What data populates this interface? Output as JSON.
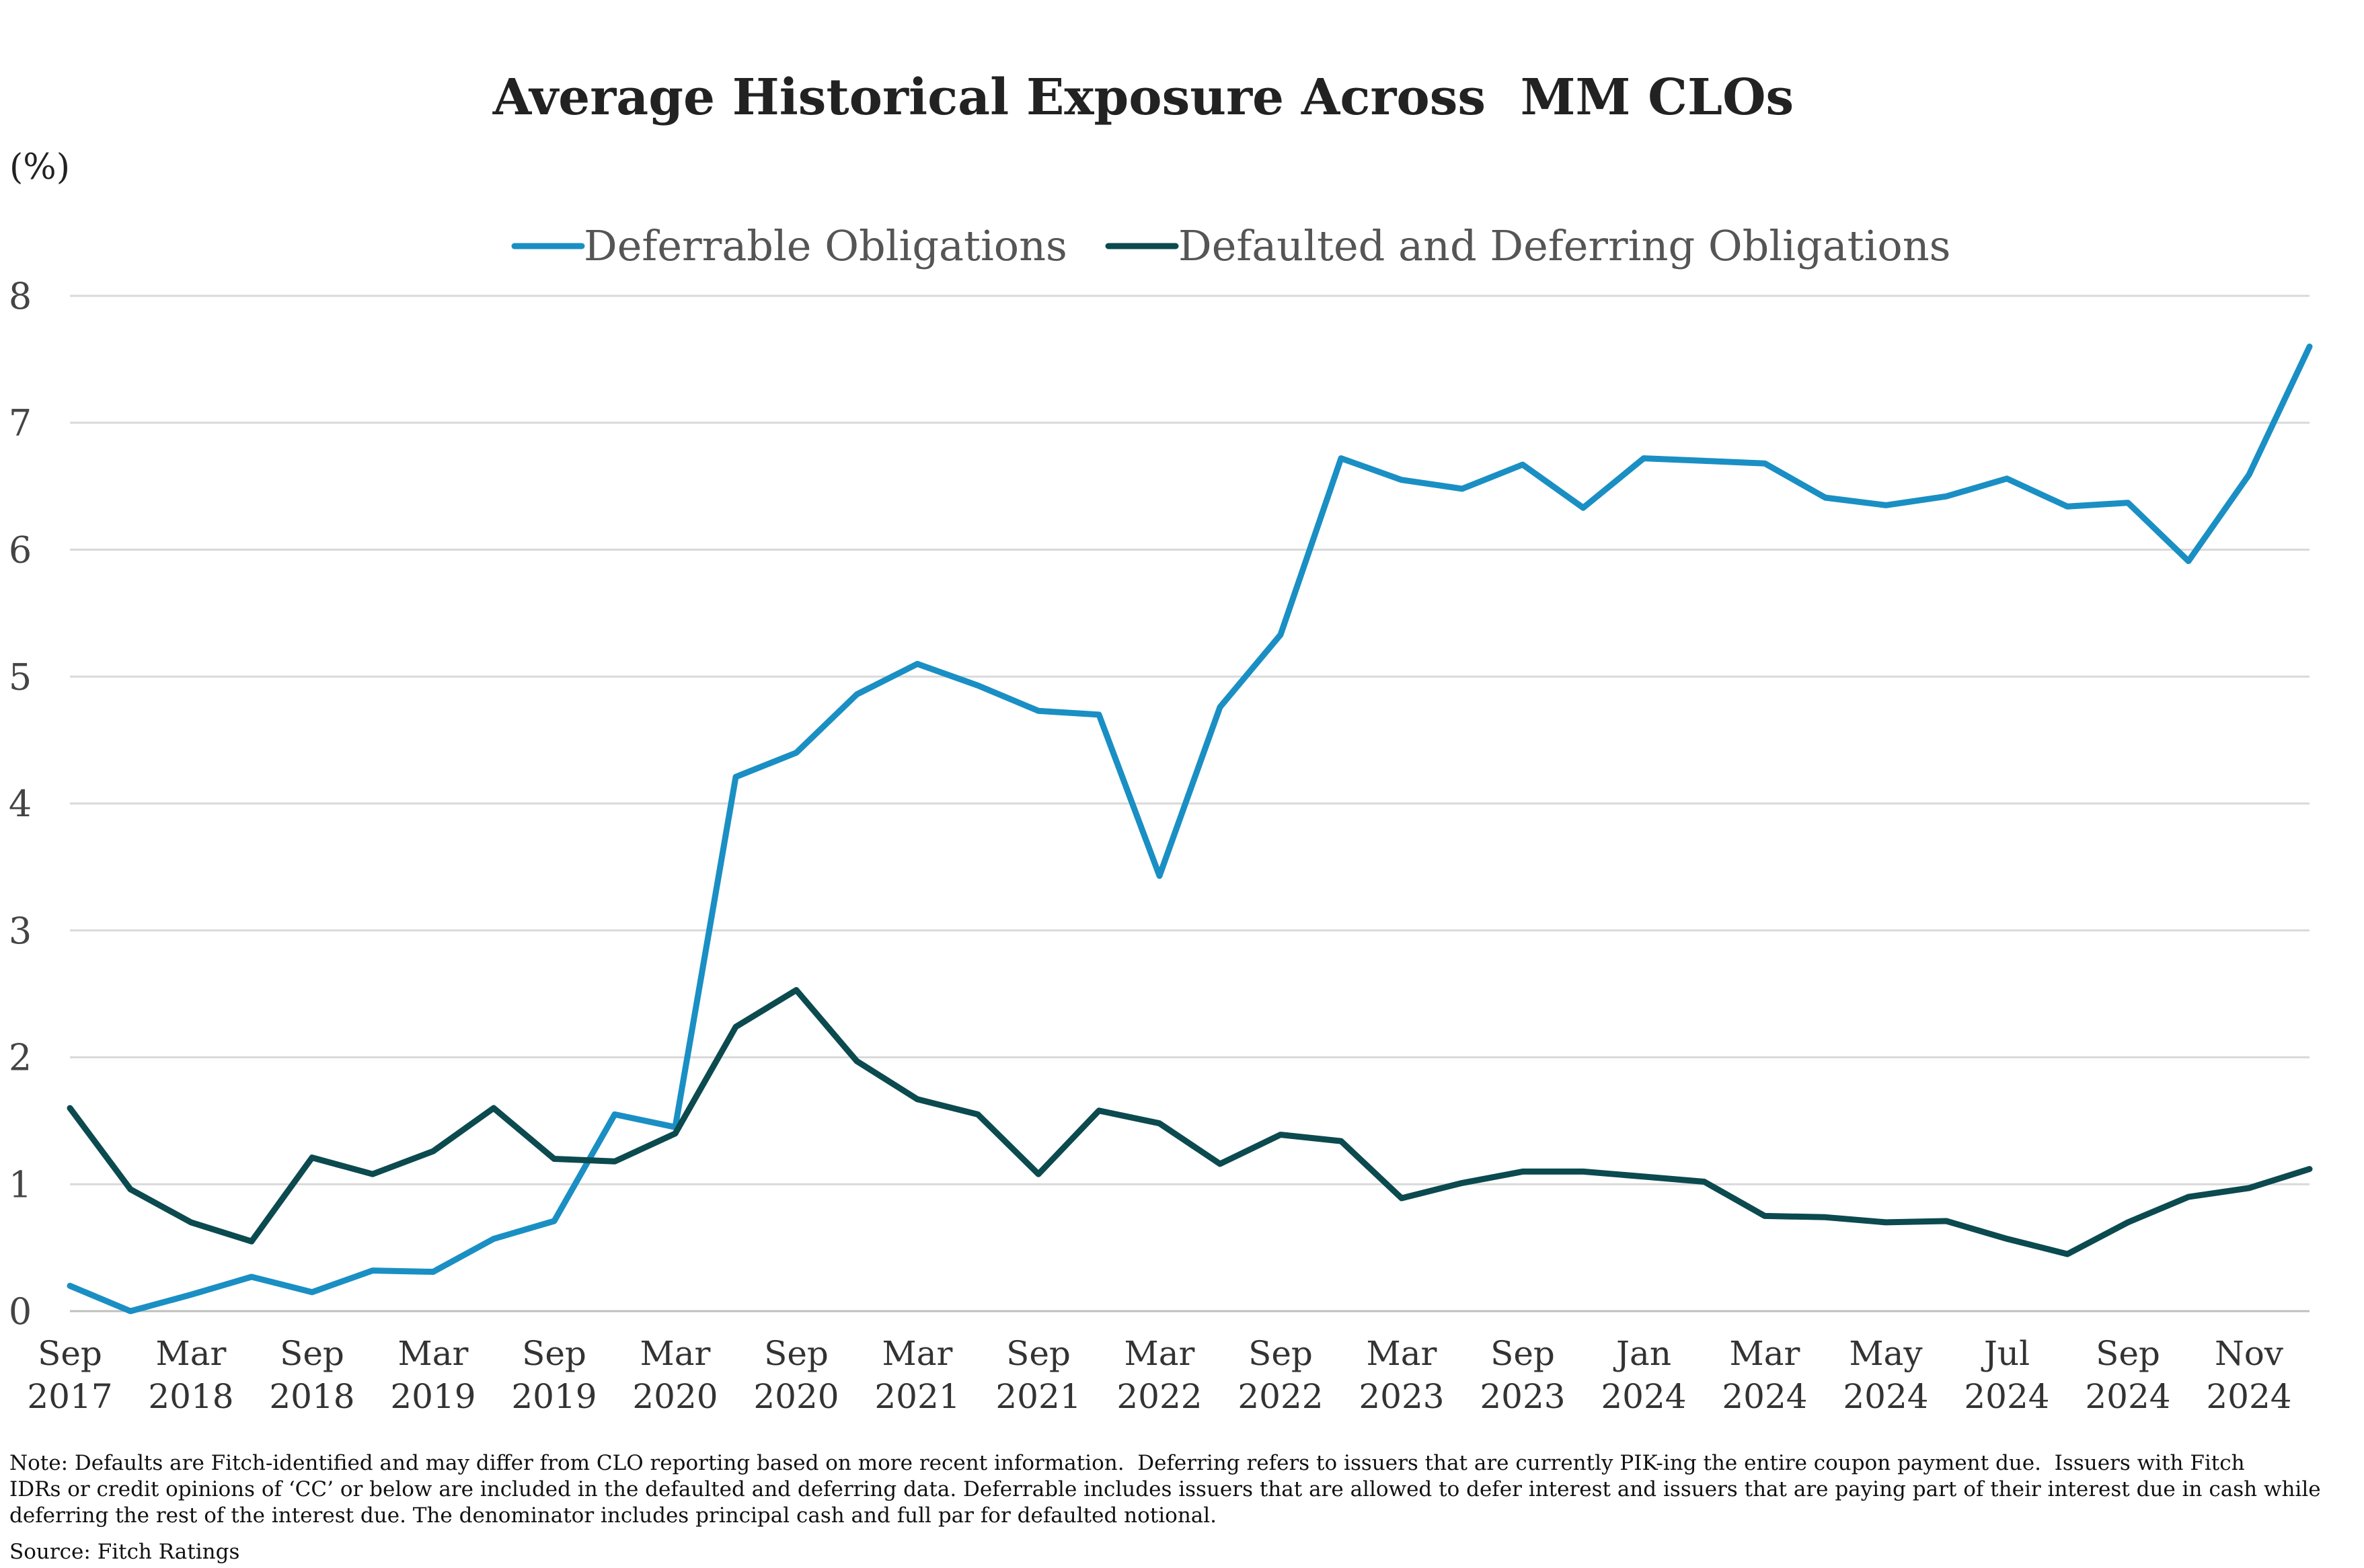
{
  "colors": {
    "deferrable": "#1a8fc4",
    "defaulted": "#0b4a4f"
  },
  "chart_data": {
    "type": "line",
    "title": "Average Historical Exposure Across  MM CLOs",
    "ylabel": "(%)",
    "ylim": [
      0,
      8
    ],
    "yticks": [
      0,
      1,
      2,
      3,
      4,
      5,
      6,
      7,
      8
    ],
    "grid": true,
    "legend_position": "top-center",
    "x": [
      "Sep 2017",
      "Dec 2017",
      "Mar 2018",
      "Jun 2018",
      "Sep 2018",
      "Dec 2018",
      "Mar 2019",
      "Jun 2019",
      "Sep 2019",
      "Dec 2019",
      "Mar 2020",
      "Jun 2020",
      "Sep 2020",
      "Dec 2020",
      "Mar 2021",
      "Jun 2021",
      "Sep 2021",
      "Dec 2021",
      "Mar 2022",
      "Jun 2022",
      "Sep 2022",
      "Dec 2022",
      "Mar 2023",
      "Jun 2023",
      "Sep 2023",
      "Nov 2023",
      "Jan 2024",
      "Feb 2024",
      "Mar 2024",
      "Apr 2024",
      "May 2024",
      "Jun 2024",
      "Jul 2024",
      "Aug 2024",
      "Sep 2024",
      "Oct 2024",
      "Nov 2024",
      "Dec 2024"
    ],
    "xtick_labels": [
      {
        "index": 0,
        "month": "Sep",
        "year": "2017"
      },
      {
        "index": 2,
        "month": "Mar",
        "year": "2018"
      },
      {
        "index": 4,
        "month": "Sep",
        "year": "2018"
      },
      {
        "index": 6,
        "month": "Mar",
        "year": "2019"
      },
      {
        "index": 8,
        "month": "Sep",
        "year": "2019"
      },
      {
        "index": 10,
        "month": "Mar",
        "year": "2020"
      },
      {
        "index": 12,
        "month": "Sep",
        "year": "2020"
      },
      {
        "index": 14,
        "month": "Mar",
        "year": "2021"
      },
      {
        "index": 16,
        "month": "Sep",
        "year": "2021"
      },
      {
        "index": 18,
        "month": "Mar",
        "year": "2022"
      },
      {
        "index": 20,
        "month": "Sep",
        "year": "2022"
      },
      {
        "index": 22,
        "month": "Mar",
        "year": "2023"
      },
      {
        "index": 24,
        "month": "Sep",
        "year": "2023"
      },
      {
        "index": 26,
        "month": "Jan",
        "year": "2024"
      },
      {
        "index": 28,
        "month": "Mar",
        "year": "2024"
      },
      {
        "index": 30,
        "month": "May",
        "year": "2024"
      },
      {
        "index": 32,
        "month": "Jul",
        "year": "2024"
      },
      {
        "index": 34,
        "month": "Sep",
        "year": "2024"
      },
      {
        "index": 36,
        "month": "Nov",
        "year": "2024"
      }
    ],
    "series": [
      {
        "name": "Deferrable Obligations",
        "color_key": "deferrable",
        "values": [
          0.2,
          0.0,
          0.13,
          0.27,
          0.15,
          0.32,
          0.31,
          0.57,
          0.71,
          1.55,
          1.45,
          4.21,
          4.4,
          4.86,
          5.1,
          4.93,
          4.73,
          4.7,
          3.43,
          4.76,
          5.33,
          6.72,
          6.55,
          6.48,
          6.67,
          6.33,
          6.72,
          6.7,
          6.68,
          6.41,
          6.35,
          6.42,
          6.56,
          6.34,
          6.37,
          5.91,
          6.59,
          7.6
        ]
      },
      {
        "name": "Defaulted and Deferring Obligations",
        "color_key": "defaulted",
        "values": [
          1.6,
          0.96,
          0.7,
          0.55,
          1.21,
          1.08,
          1.26,
          1.6,
          1.2,
          1.18,
          1.4,
          2.24,
          2.53,
          1.97,
          1.67,
          1.55,
          1.08,
          1.58,
          1.48,
          1.16,
          1.39,
          1.34,
          0.89,
          1.01,
          1.1,
          1.1,
          1.06,
          1.02,
          0.75,
          0.74,
          0.7,
          0.71,
          0.57,
          0.45,
          0.7,
          0.9,
          0.97,
          1.12
        ]
      }
    ]
  },
  "footer": {
    "note_line1": "Note: Defaults are Fitch-identified and may differ from CLO reporting based on more recent information.  Deferring refers to issuers that are currently PIK-ing the entire coupon payment due.  Issuers with Fitch",
    "note_line2": "IDRs or credit opinions of ‘CC’ or below are included in the defaulted and deferring data. Deferrable includes issuers that are allowed to defer interest and issuers that are paying part of their interest due in cash while",
    "note_line3": "deferring the rest of the interest due. The denominator includes principal cash and full par for defaulted notional.",
    "source": "Source: Fitch Ratings"
  }
}
